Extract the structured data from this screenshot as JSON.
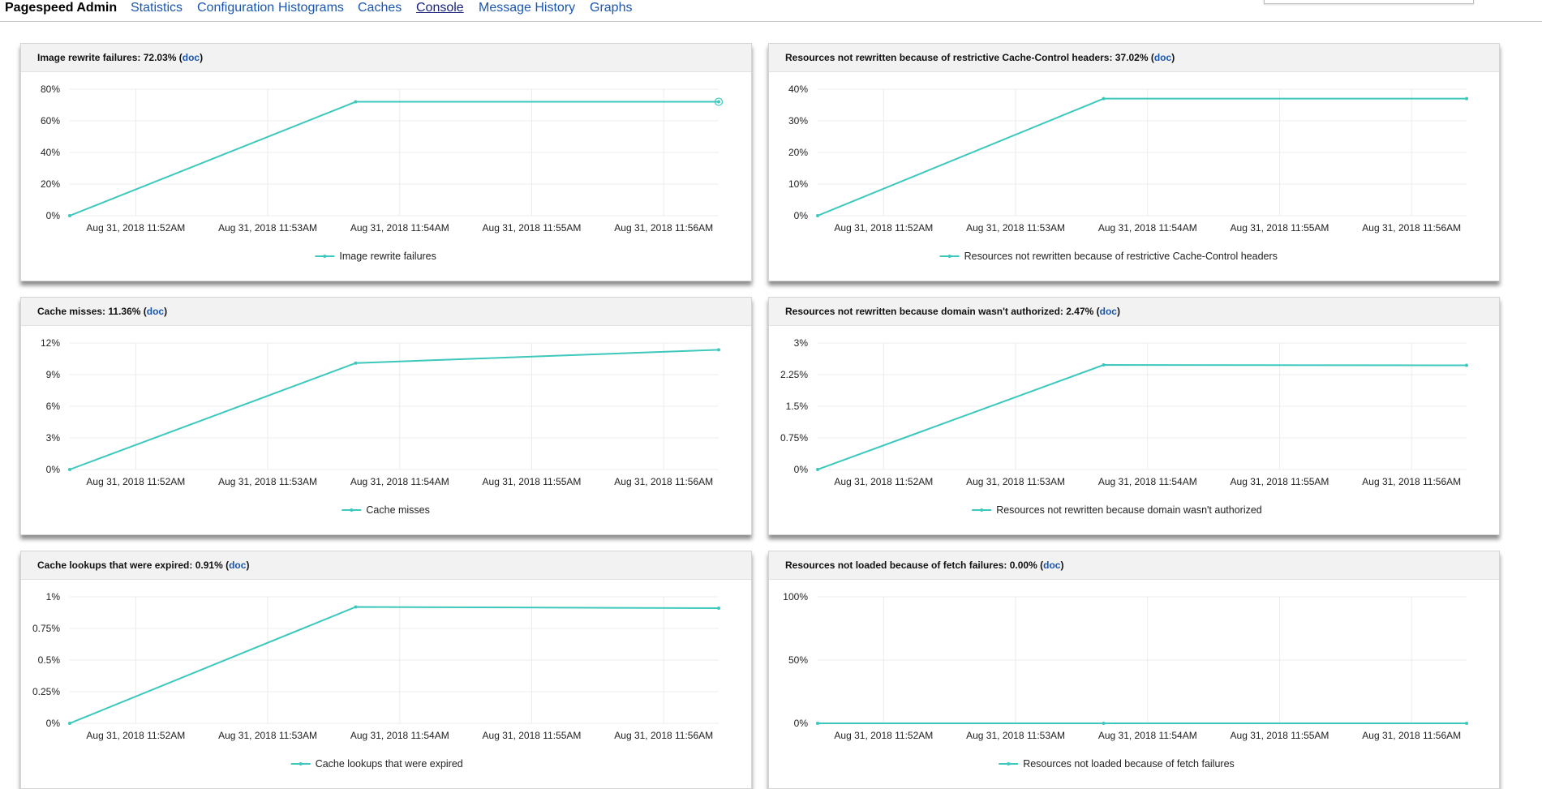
{
  "nav": {
    "brand": "Pagespeed Admin",
    "links": [
      {
        "label": "Statistics",
        "active": false
      },
      {
        "label": "Configuration",
        "active": false
      },
      {
        "label": "Histograms",
        "active": false
      },
      {
        "label": "Caches",
        "active": false
      },
      {
        "label": "Console",
        "active": true
      },
      {
        "label": "Message History",
        "active": false
      },
      {
        "label": "Graphs",
        "active": false
      }
    ]
  },
  "colors": {
    "series": "#3cc8bc",
    "grid": "#ececec",
    "link": "#1a56b0"
  },
  "panels": [
    {
      "title": "Image rewrite failures: 72.03%",
      "doc_label": "doc",
      "chart_data": {
        "type": "line",
        "x": [
          "Aug 31, 2018 11:51:30AM",
          "Aug 31, 2018 11:53:40AM",
          "Aug 31, 2018 11:56:25AM"
        ],
        "y_ticks": [
          "80%",
          "60%",
          "40%",
          "20%",
          "0%"
        ],
        "ylim": [
          0,
          80
        ],
        "x_ticks": [
          "Aug 31, 2018 11:52AM",
          "Aug 31, 2018 11:53AM",
          "Aug 31, 2018 11:54AM",
          "Aug 31, 2018 11:55AM",
          "Aug 31, 2018 11:56AM"
        ],
        "series": [
          {
            "name": "Image rewrite failures",
            "values": [
              0,
              72.03,
              72.03
            ],
            "highlight_last": true
          }
        ],
        "legend": "bottom"
      }
    },
    {
      "title": "Resources not rewritten because of restrictive Cache-Control headers: 37.02%",
      "doc_label": "doc",
      "chart_data": {
        "type": "line",
        "x": [
          "Aug 31, 2018 11:51:30AM",
          "Aug 31, 2018 11:53:40AM",
          "Aug 31, 2018 11:56:25AM"
        ],
        "y_ticks": [
          "40%",
          "30%",
          "20%",
          "10%",
          "0%"
        ],
        "ylim": [
          0,
          40
        ],
        "x_ticks": [
          "Aug 31, 2018 11:52AM",
          "Aug 31, 2018 11:53AM",
          "Aug 31, 2018 11:54AM",
          "Aug 31, 2018 11:55AM",
          "Aug 31, 2018 11:56AM"
        ],
        "series": [
          {
            "name": "Resources not rewritten because of restrictive Cache-Control headers",
            "values": [
              0,
              37.02,
              37.02
            ],
            "highlight_last": false
          }
        ],
        "legend": "bottom"
      }
    },
    {
      "title": "Cache misses: 11.36%",
      "doc_label": "doc",
      "chart_data": {
        "type": "line",
        "x": [
          "Aug 31, 2018 11:51:30AM",
          "Aug 31, 2018 11:53:40AM",
          "Aug 31, 2018 11:56:25AM"
        ],
        "y_ticks": [
          "12%",
          "9%",
          "6%",
          "3%",
          "0%"
        ],
        "ylim": [
          0,
          12
        ],
        "x_ticks": [
          "Aug 31, 2018 11:52AM",
          "Aug 31, 2018 11:53AM",
          "Aug 31, 2018 11:54AM",
          "Aug 31, 2018 11:55AM",
          "Aug 31, 2018 11:56AM"
        ],
        "series": [
          {
            "name": "Cache misses",
            "values": [
              0,
              10.1,
              11.36
            ],
            "highlight_last": false
          }
        ],
        "legend": "bottom"
      }
    },
    {
      "title": "Resources not rewritten because domain wasn't authorized: 2.47%",
      "doc_label": "doc",
      "chart_data": {
        "type": "line",
        "x": [
          "Aug 31, 2018 11:51:30AM",
          "Aug 31, 2018 11:53:40AM",
          "Aug 31, 2018 11:56:25AM"
        ],
        "y_ticks": [
          "3%",
          "2.25%",
          "1.5%",
          "0.75%",
          "0%"
        ],
        "ylim": [
          0,
          3
        ],
        "x_ticks": [
          "Aug 31, 2018 11:52AM",
          "Aug 31, 2018 11:53AM",
          "Aug 31, 2018 11:54AM",
          "Aug 31, 2018 11:55AM",
          "Aug 31, 2018 11:56AM"
        ],
        "series": [
          {
            "name": "Resources not rewritten because domain wasn't authorized",
            "values": [
              0,
              2.48,
              2.47
            ],
            "highlight_last": false
          }
        ],
        "legend": "bottom"
      }
    },
    {
      "title": "Cache lookups that were expired: 0.91%",
      "doc_label": "doc",
      "chart_data": {
        "type": "line",
        "x": [
          "Aug 31, 2018 11:51:30AM",
          "Aug 31, 2018 11:53:40AM",
          "Aug 31, 2018 11:56:25AM"
        ],
        "y_ticks": [
          "1%",
          "0.75%",
          "0.5%",
          "0.25%",
          "0%"
        ],
        "ylim": [
          0,
          1
        ],
        "x_ticks": [
          "Aug 31, 2018 11:52AM",
          "Aug 31, 2018 11:53AM",
          "Aug 31, 2018 11:54AM",
          "Aug 31, 2018 11:55AM",
          "Aug 31, 2018 11:56AM"
        ],
        "series": [
          {
            "name": "Cache lookups that were expired",
            "values": [
              0,
              0.92,
              0.91
            ],
            "highlight_last": false
          }
        ],
        "legend": "bottom"
      }
    },
    {
      "title": "Resources not loaded because of fetch failures: 0.00%",
      "doc_label": "doc",
      "chart_data": {
        "type": "line",
        "x": [
          "Aug 31, 2018 11:51:30AM",
          "Aug 31, 2018 11:53:40AM",
          "Aug 31, 2018 11:56:25AM"
        ],
        "y_ticks": [
          "100%",
          "50%",
          "0%"
        ],
        "ylim": [
          0,
          100
        ],
        "x_ticks": [
          "Aug 31, 2018 11:52AM",
          "Aug 31, 2018 11:53AM",
          "Aug 31, 2018 11:54AM",
          "Aug 31, 2018 11:55AM",
          "Aug 31, 2018 11:56AM"
        ],
        "series": [
          {
            "name": "Resources not loaded because of fetch failures",
            "values": [
              0,
              0,
              0
            ],
            "highlight_last": false
          }
        ],
        "legend": "bottom"
      }
    }
  ]
}
